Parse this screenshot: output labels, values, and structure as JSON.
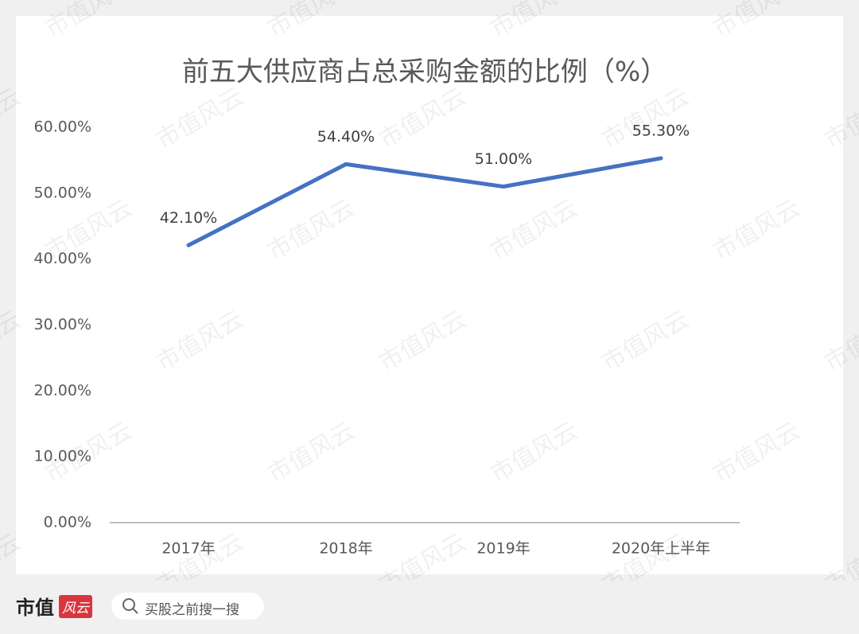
{
  "chart_data": {
    "type": "line",
    "title": "前五大供应商占总采购金额的比例（%）",
    "categories": [
      "2017年",
      "2018年",
      "2019年",
      "2020年上半年"
    ],
    "series": [
      {
        "name": "比例",
        "color": "#4472c4",
        "values": [
          42.1,
          54.4,
          51.0,
          55.3
        ],
        "value_labels": [
          "42.10%",
          "54.40%",
          "51.00%",
          "55.30%"
        ]
      }
    ],
    "ylim": [
      0,
      60
    ],
    "yticks": [
      {
        "value": 0,
        "label": "0.00%"
      },
      {
        "value": 10,
        "label": "10.00%"
      },
      {
        "value": 20,
        "label": "20.00%"
      },
      {
        "value": 30,
        "label": "30.00%"
      },
      {
        "value": 40,
        "label": "40.00%"
      },
      {
        "value": 50,
        "label": "50.00%"
      },
      {
        "value": 60,
        "label": "60.00%"
      }
    ],
    "grid": false,
    "legend": false
  },
  "watermark": "市值风云",
  "footer": {
    "logo_text": "市值",
    "logo_badge": "风云",
    "search_placeholder": "买股之前搜一搜"
  }
}
